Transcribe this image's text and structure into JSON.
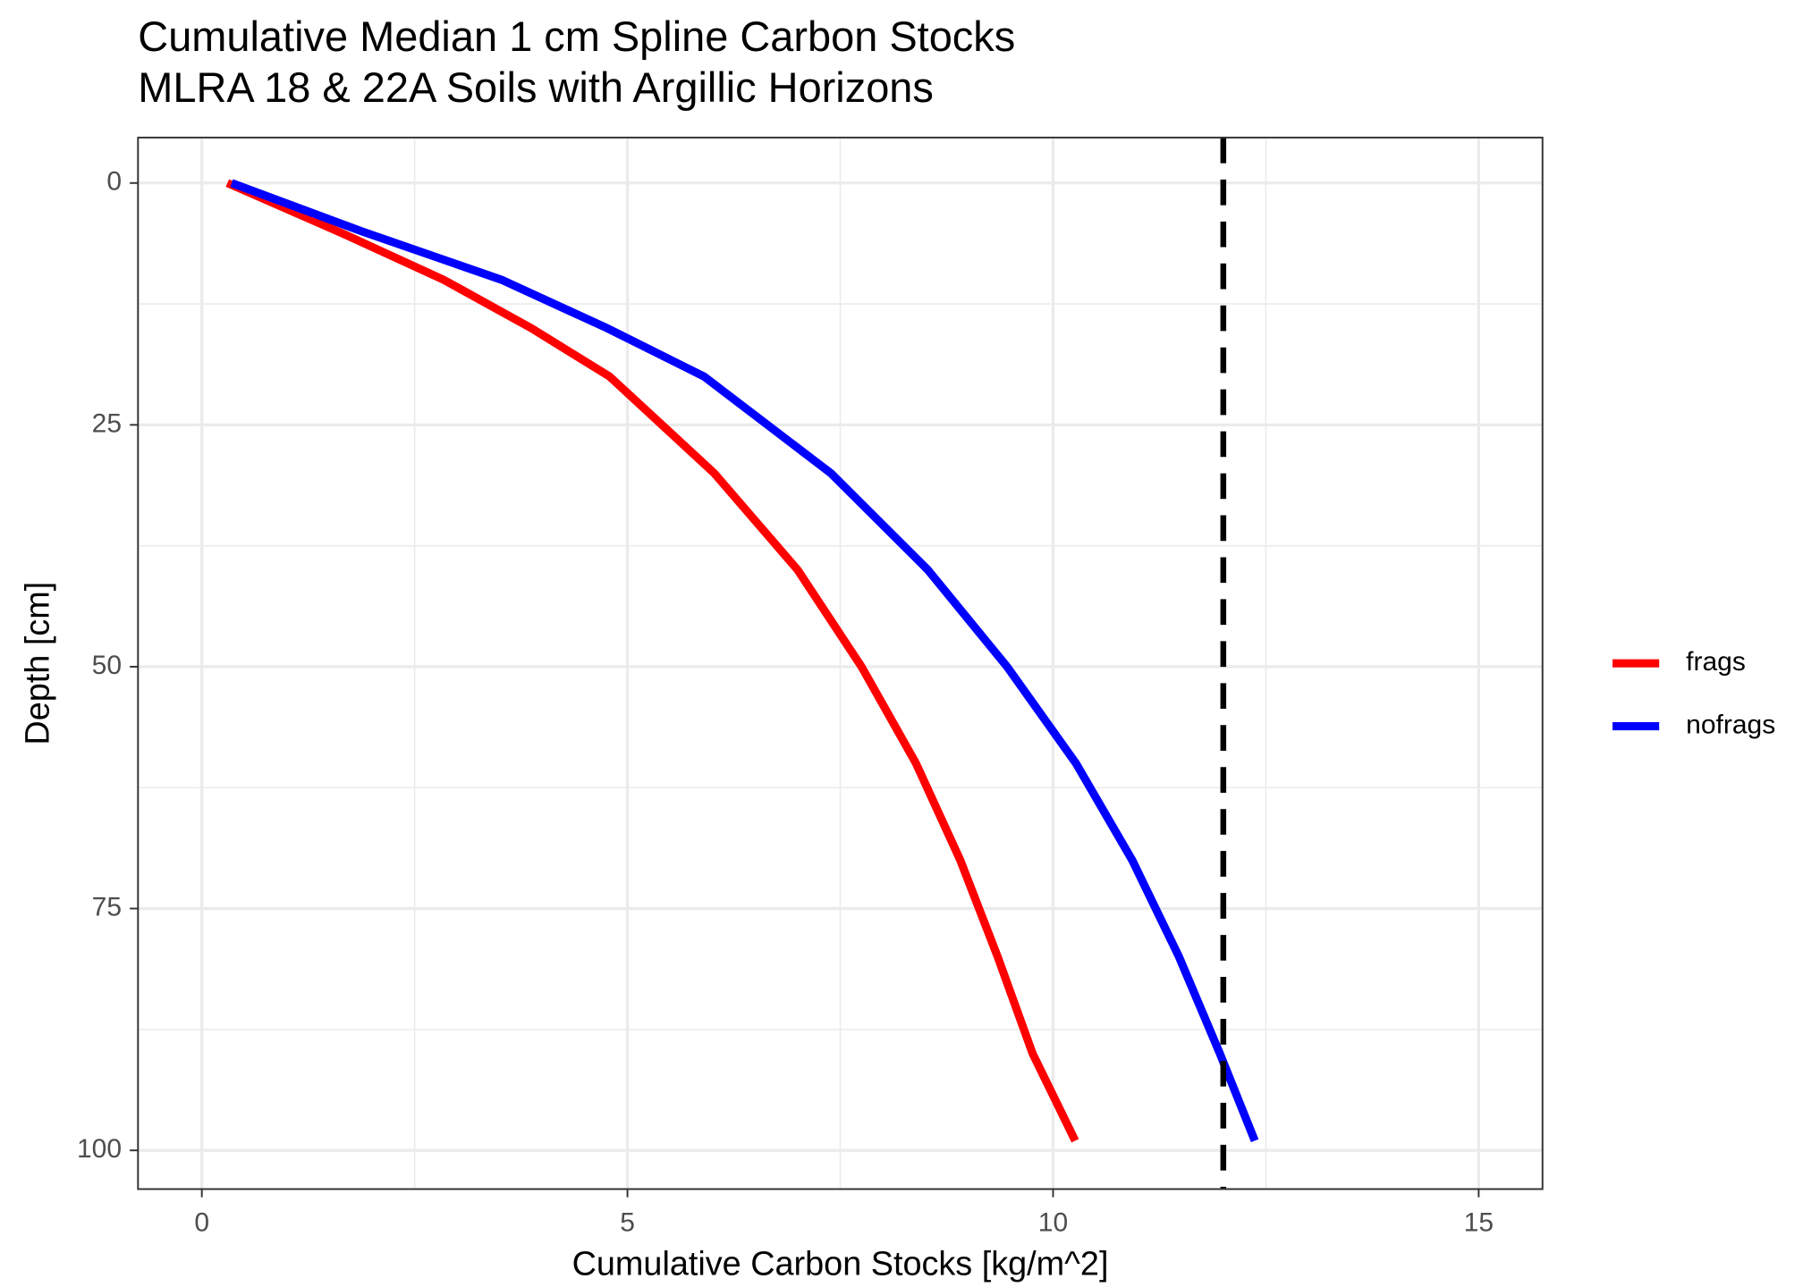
{
  "chart_data": {
    "type": "line",
    "title": "Cumulative Median 1 cm Spline Carbon Stocks",
    "subtitle": "MLRA 18 & 22A Soils with Argillic Horizons",
    "x_label": "Cumulative Carbon Stocks [kg/m^2]",
    "y_label": "Depth [cm]",
    "y": [
      0,
      5,
      10,
      15,
      20,
      30,
      40,
      50,
      60,
      70,
      80,
      90,
      99
    ],
    "series": [
      {
        "name": "frags",
        "color": "#ff0000",
        "x": [
          0.3,
          1.6,
          2.84,
          3.87,
          4.79,
          6.02,
          7.0,
          7.75,
          8.39,
          8.91,
          9.35,
          9.76,
          10.26
        ]
      },
      {
        "name": "nofrags",
        "color": "#0000ff",
        "x": [
          0.35,
          1.88,
          3.52,
          4.76,
          5.9,
          7.39,
          8.53,
          9.46,
          10.27,
          10.93,
          11.48,
          11.96,
          12.37
        ]
      }
    ],
    "vline": 12,
    "vline_color": "#000000",
    "xlim": [
      -0.75,
      15.75
    ],
    "ylim": [
      -4.7,
      104
    ],
    "xticks": [
      0,
      5,
      10,
      15
    ],
    "yticks": [
      0,
      25,
      50,
      75,
      100
    ],
    "minor_xticks": [
      2.5,
      7.5,
      12.5
    ],
    "minor_yticks": [
      12.5,
      37.5,
      62.5,
      87.5
    ],
    "y_reversed": true,
    "grid": true,
    "legend": "right"
  }
}
